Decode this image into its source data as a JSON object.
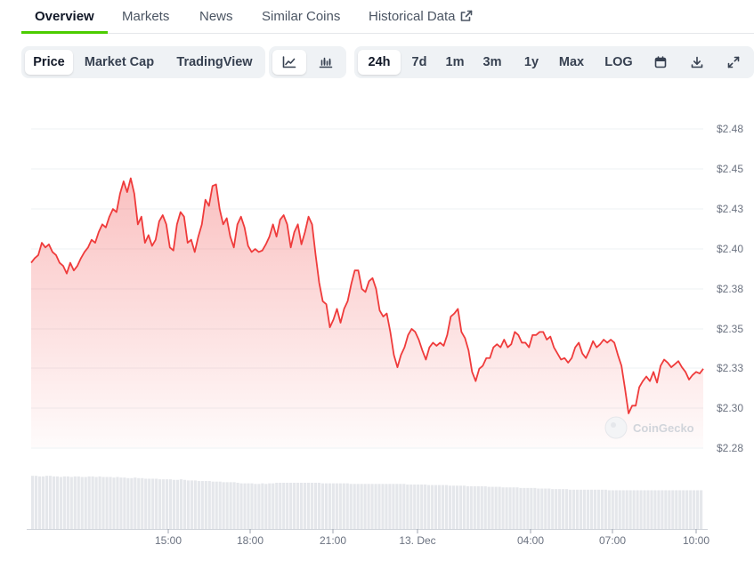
{
  "nav": {
    "tabs": [
      {
        "label": "Overview"
      },
      {
        "label": "Markets"
      },
      {
        "label": "News"
      },
      {
        "label": "Similar Coins"
      },
      {
        "label": "Historical Data"
      }
    ],
    "active": "Overview"
  },
  "toolbar": {
    "view_tabs": [
      "Price",
      "Market Cap",
      "TradingView"
    ],
    "view_selected": "Price",
    "chart_type_icons": [
      "line-chart-icon",
      "candlestick-icon"
    ],
    "chart_type_selected": "line-chart-icon",
    "ranges": [
      "24h",
      "7d",
      "1m",
      "3m",
      "1y",
      "Max",
      "LOG"
    ],
    "range_selected": "24h",
    "action_icons": [
      "calendar-icon",
      "download-icon",
      "expand-icon"
    ]
  },
  "watermark": "CoinGecko",
  "colors": {
    "line": "#ef3b3b",
    "fill": "#fde2e2",
    "volume": "#e5e7eb",
    "accent": "#4bcc00"
  },
  "chart_data": {
    "type": "area",
    "x_ticks": [
      "15:00",
      "18:00",
      "21:00",
      "13. Dec",
      "04:00",
      "07:00",
      "10:00"
    ],
    "y_ticks": [
      "$2.48",
      "$2.45",
      "$2.43",
      "$2.40",
      "$2.38",
      "$2.35",
      "$2.33",
      "$2.30",
      "$2.28"
    ],
    "ylim": [
      2.275,
      2.485
    ],
    "grid": true,
    "series": [
      {
        "values": [
          2.395,
          2.398,
          2.4,
          2.408,
          2.405,
          2.407,
          2.402,
          2.4,
          2.395,
          2.393,
          2.388,
          2.395,
          2.39,
          2.393,
          2.398,
          2.402,
          2.405,
          2.41,
          2.408,
          2.415,
          2.42,
          2.418,
          2.425,
          2.43,
          2.428,
          2.44,
          2.448,
          2.441,
          2.45,
          2.44,
          2.42,
          2.425,
          2.408,
          2.413,
          2.406,
          2.41,
          2.422,
          2.426,
          2.42,
          2.405,
          2.403,
          2.42,
          2.428,
          2.425,
          2.408,
          2.41,
          2.402,
          2.412,
          2.42,
          2.436,
          2.432,
          2.445,
          2.446,
          2.43,
          2.42,
          2.424,
          2.412,
          2.405,
          2.42,
          2.425,
          2.418,
          2.406,
          2.402,
          2.404,
          2.402,
          2.403,
          2.407,
          2.412,
          2.42,
          2.412,
          2.423,
          2.426,
          2.42,
          2.405,
          2.415,
          2.42,
          2.407,
          2.415,
          2.425,
          2.42,
          2.4,
          2.382,
          2.37,
          2.368,
          2.353,
          2.358,
          2.365,
          2.356,
          2.365,
          2.37,
          2.381,
          2.39,
          2.39,
          2.378,
          2.376,
          2.383,
          2.385,
          2.378,
          2.364,
          2.36,
          2.362,
          2.35,
          2.335,
          2.327,
          2.335,
          2.34,
          2.348,
          2.352,
          2.35,
          2.345,
          2.338,
          2.332,
          2.34,
          2.343,
          2.341,
          2.343,
          2.341,
          2.348,
          2.36,
          2.362,
          2.365,
          2.35,
          2.346,
          2.338,
          2.324,
          2.318,
          2.326,
          2.328,
          2.333,
          2.333,
          2.34,
          2.342,
          2.34,
          2.345,
          2.34,
          2.342,
          2.35,
          2.348,
          2.343,
          2.343,
          2.34,
          2.348,
          2.348,
          2.35,
          2.35,
          2.345,
          2.347,
          2.34,
          2.336,
          2.332,
          2.333,
          2.33,
          2.333,
          2.34,
          2.343,
          2.336,
          2.333,
          2.338,
          2.344,
          2.34,
          2.342,
          2.345,
          2.343,
          2.345,
          2.343,
          2.335,
          2.328,
          2.313,
          2.297,
          2.302,
          2.302,
          2.314,
          2.318,
          2.321,
          2.318,
          2.324,
          2.317,
          2.328,
          2.332,
          2.33,
          2.327,
          2.329,
          2.331,
          2.327,
          2.324,
          2.319,
          2.322,
          2.324,
          2.323,
          2.326
        ]
      }
    ],
    "volume": [
      0.92,
      0.92,
      0.91,
      0.91,
      0.92,
      0.92,
      0.91,
      0.91,
      0.9,
      0.91,
      0.91,
      0.9,
      0.91,
      0.91,
      0.9,
      0.9,
      0.91,
      0.91,
      0.9,
      0.91,
      0.9,
      0.9,
      0.9,
      0.89,
      0.9,
      0.89,
      0.89,
      0.88,
      0.88,
      0.89,
      0.88,
      0.88,
      0.87,
      0.87,
      0.87,
      0.87,
      0.86,
      0.86,
      0.86,
      0.86,
      0.85,
      0.85,
      0.86,
      0.85,
      0.84,
      0.84,
      0.84,
      0.83,
      0.83,
      0.83,
      0.83,
      0.82,
      0.82,
      0.82,
      0.81,
      0.81,
      0.81,
      0.81,
      0.8,
      0.79,
      0.79,
      0.79,
      0.79,
      0.78,
      0.78,
      0.79,
      0.78,
      0.79,
      0.79,
      0.8,
      0.8,
      0.8,
      0.8,
      0.8,
      0.8,
      0.8,
      0.8,
      0.8,
      0.8,
      0.8,
      0.8,
      0.8,
      0.79,
      0.79,
      0.79,
      0.79,
      0.79,
      0.79,
      0.79,
      0.79,
      0.78,
      0.78,
      0.78,
      0.78,
      0.78,
      0.78,
      0.78,
      0.78,
      0.78,
      0.78,
      0.78,
      0.78,
      0.78,
      0.78,
      0.78,
      0.78,
      0.77,
      0.77,
      0.77,
      0.77,
      0.77,
      0.77,
      0.76,
      0.76,
      0.76,
      0.76,
      0.76,
      0.76,
      0.75,
      0.75,
      0.75,
      0.75,
      0.75,
      0.74,
      0.74,
      0.74,
      0.74,
      0.74,
      0.74,
      0.73,
      0.73,
      0.73,
      0.73,
      0.72,
      0.72,
      0.72,
      0.72,
      0.72,
      0.71,
      0.71,
      0.71,
      0.71,
      0.71,
      0.7,
      0.7,
      0.7,
      0.7,
      0.69,
      0.69,
      0.69,
      0.69,
      0.69,
      0.68,
      0.68,
      0.68,
      0.68,
      0.68,
      0.68,
      0.68,
      0.68,
      0.68,
      0.68,
      0.68,
      0.67,
      0.67,
      0.67,
      0.67,
      0.67,
      0.67,
      0.67,
      0.67,
      0.67,
      0.67,
      0.67,
      0.67,
      0.67,
      0.67,
      0.67,
      0.67,
      0.67,
      0.67,
      0.67,
      0.67,
      0.67,
      0.67,
      0.67,
      0.67,
      0.67,
      0.67,
      0.67
    ]
  }
}
